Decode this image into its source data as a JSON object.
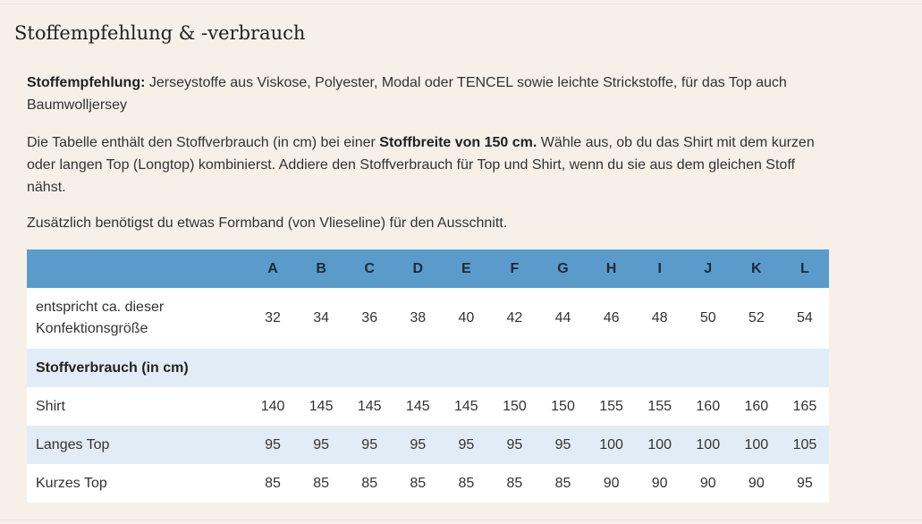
{
  "title": "Stoffempfehlung & -verbrauch",
  "intro": {
    "recommendation_label": "Stoffempfehlung:",
    "recommendation_text": " Jerseystoffe aus Viskose, Polyester, Modal oder TENCEL sowie leichte Strickstoffe, für das Top auch Baumwolljersey",
    "table_text_before": "Die Tabelle enthält den Stoffverbrauch (in cm) bei einer ",
    "table_text_bold": "Stoffbreite von 150 cm.",
    "table_text_after": " Wähle aus, ob du das Shirt mit dem kurzen oder langen Top (Longtop) kombinierst. Addiere den Stoffverbrauch für Top und Shirt, wenn du sie aus dem gleichen Stoff nähst.",
    "extra_text": "Zusätzlich benötigst du etwas Formband (von Vlieseline) für den Ausschnitt."
  },
  "table": {
    "columns": [
      "A",
      "B",
      "C",
      "D",
      "E",
      "F",
      "G",
      "H",
      "I",
      "J",
      "K",
      "L"
    ],
    "size_row": {
      "label_line1": "entspricht ca. dieser",
      "label_line2": "Konfektionsgröße",
      "values": [
        "32",
        "34",
        "36",
        "38",
        "40",
        "42",
        "44",
        "46",
        "48",
        "50",
        "52",
        "54"
      ]
    },
    "section_label": "Stoffverbrauch (in cm)",
    "rows": [
      {
        "label": "Shirt",
        "values": [
          "140",
          "145",
          "145",
          "145",
          "145",
          "150",
          "150",
          "155",
          "155",
          "160",
          "160",
          "165"
        ]
      },
      {
        "label": "Langes Top",
        "values": [
          "95",
          "95",
          "95",
          "95",
          "95",
          "95",
          "95",
          "100",
          "100",
          "100",
          "100",
          "105"
        ]
      },
      {
        "label": "Kurzes Top",
        "values": [
          "85",
          "85",
          "85",
          "85",
          "85",
          "85",
          "85",
          "90",
          "90",
          "90",
          "90",
          "95"
        ]
      }
    ]
  },
  "colors": {
    "header_blue": "#5b9bcc",
    "row_light_blue": "#e1ecf6",
    "page_background": "#f6f0e9"
  }
}
